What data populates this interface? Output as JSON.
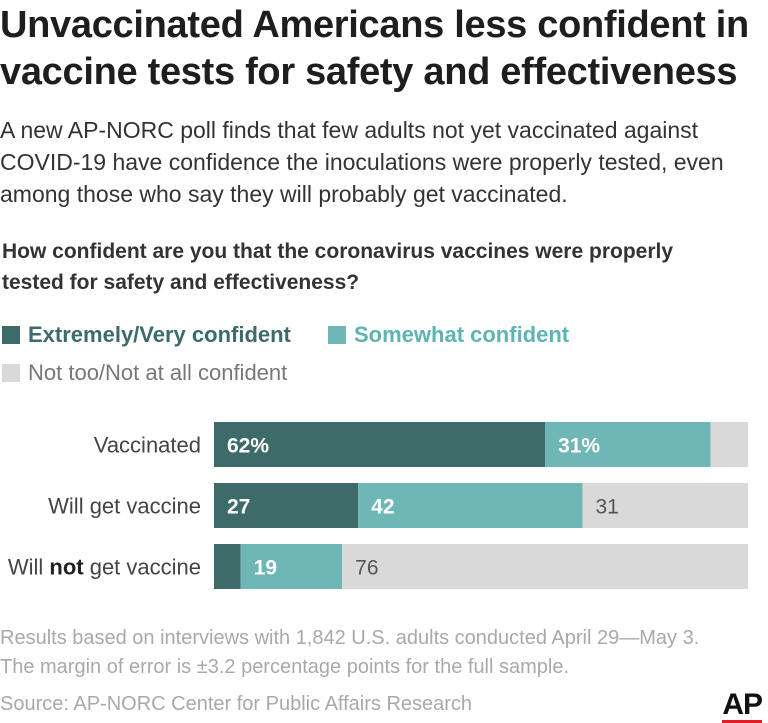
{
  "header": {
    "title_line1": "Unvaccinated Americans less confident in",
    "title_line2": "vaccine tests for safety and effectiveness",
    "subtitle_line1": "A new AP-NORC poll finds that few adults not yet vaccinated against",
    "subtitle_line2": "COVID-19 have confidence the inoculations were properly tested, even",
    "subtitle_line3": "among those who say they will probably get vaccinated.",
    "question_line1": "How confident are you that the coronavirus vaccines were properly",
    "question_line2": "tested for safety and effectiveness?"
  },
  "legend": [
    {
      "label": "Extremely/Very confident",
      "color": "#3d6b6a",
      "text_color": "#3d6b6a"
    },
    {
      "label": "Somewhat confident",
      "color": "#6fb6b6",
      "text_color": "#5eb3b3"
    },
    {
      "label": "Not too/Not at all confident",
      "color": "#d9d9d9",
      "text_color": "#777777"
    }
  ],
  "chart_data": {
    "type": "bar",
    "orientation": "horizontal",
    "stacked": true,
    "xlim": [
      0,
      100
    ],
    "categories": [
      {
        "pre": "Vaccinated",
        "bold": "",
        "post": ""
      },
      {
        "pre": "Will get vaccine",
        "bold": "",
        "post": ""
      },
      {
        "pre": "Will ",
        "bold": "not",
        "post": " get vaccine"
      }
    ],
    "series": [
      {
        "name": "Extremely/Very confident",
        "values": [
          62,
          27,
          5
        ],
        "labels": [
          "62%",
          "27",
          ""
        ],
        "color": "#3d6b6a",
        "label_color": "#ffffff"
      },
      {
        "name": "Somewhat confident",
        "values": [
          31,
          42,
          19
        ],
        "labels": [
          "31%",
          "42",
          "19"
        ],
        "color": "#6fb6b6",
        "label_color": "#ffffff"
      },
      {
        "name": "Not too/Not at all confident",
        "values": [
          7,
          31,
          76
        ],
        "labels": [
          "",
          "31",
          "76"
        ],
        "color": "#d9d9d9",
        "label_color": "#555555"
      }
    ]
  },
  "footer": {
    "note_line1": "Results based on interviews with 1,842 U.S. adults conducted April 29—May 3.",
    "note_line2": "The margin of error is ±3.2 percentage points for the full sample.",
    "source": "Source: AP-NORC Center for Public Affairs Research",
    "logo": "AP"
  }
}
